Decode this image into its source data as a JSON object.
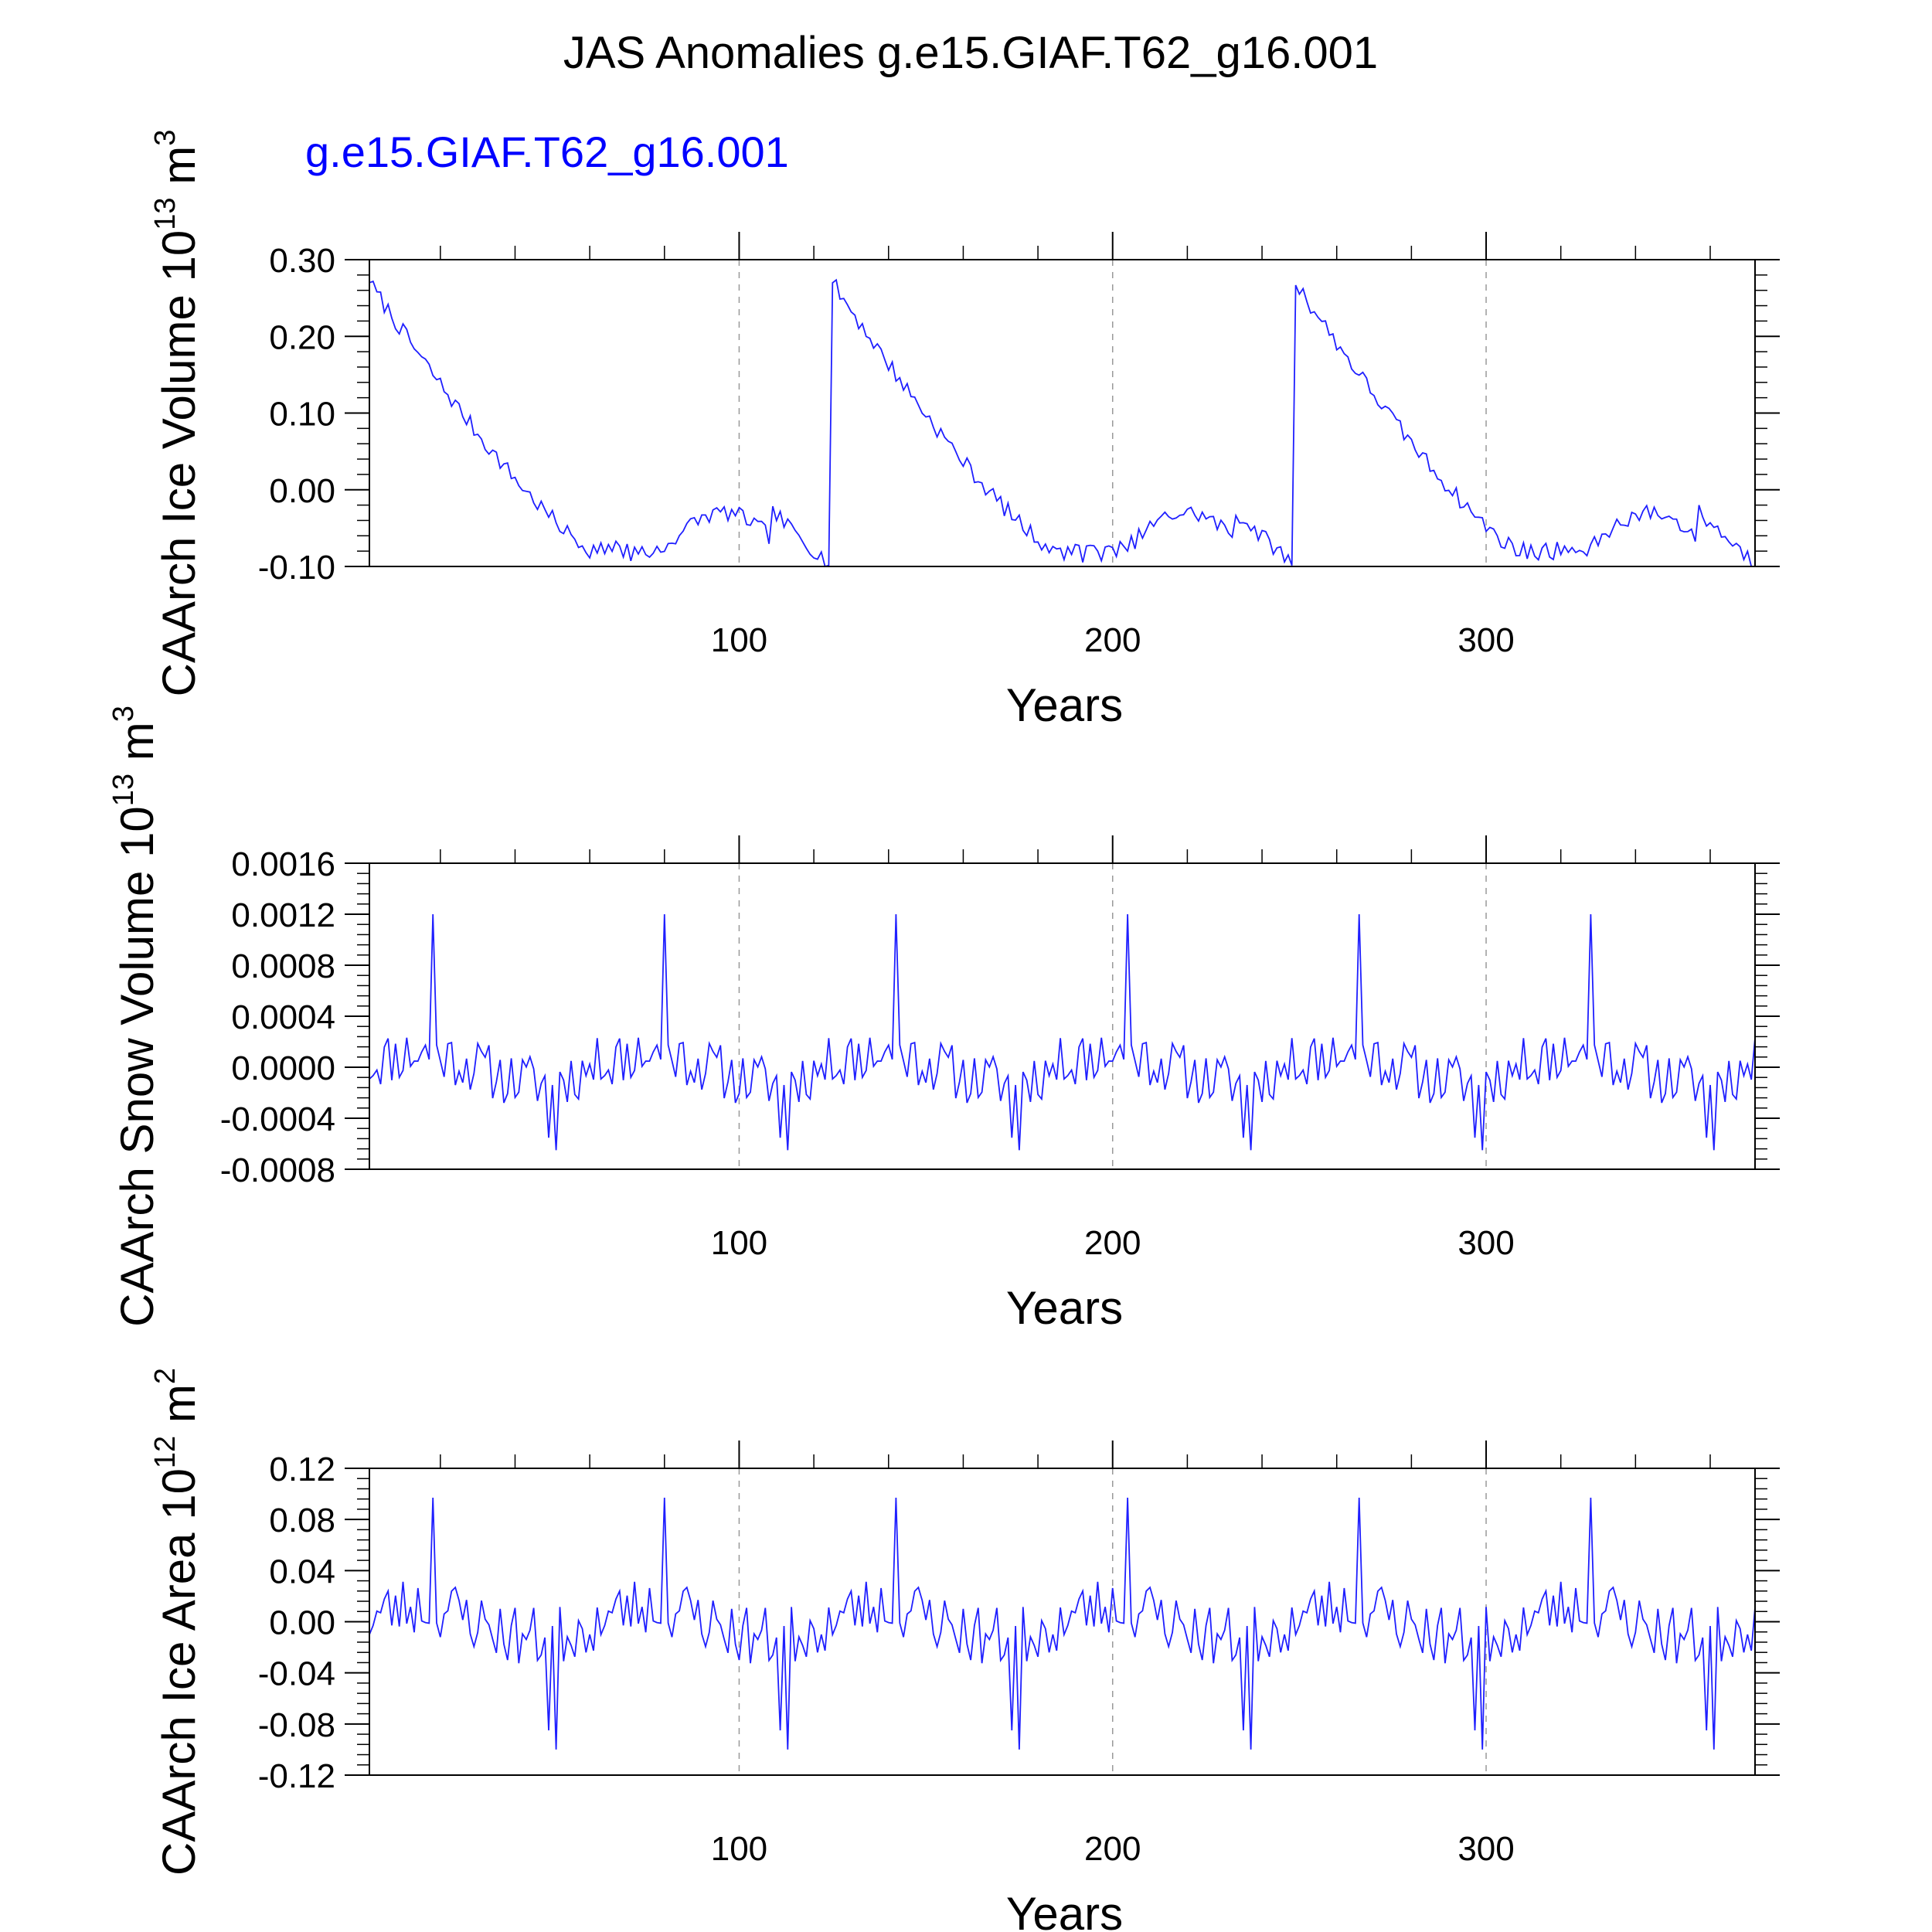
{
  "title": "JAS Anomalies g.e15.GIAF.T62_g16.001",
  "legend_label": "g.e15.GIAF.T62_g16.001",
  "colors": {
    "series": "#1f1fff",
    "legend": "#0000ff",
    "axis": "#000000",
    "grid": "#999999"
  },
  "chart_data": [
    {
      "type": "line",
      "name": "ice_volume",
      "ylabel": "CAArch Ice Volume",
      "ylabel_unit_base": "10",
      "ylabel_unit_exp": "13",
      "ylabel_unit_tail": "m",
      "ylabel_unit_tail_exp": "3",
      "xlabel": "Years",
      "xlim": [
        1,
        372
      ],
      "ylim": [
        -0.1,
        0.3
      ],
      "yticks": [
        -0.1,
        0.0,
        0.1,
        0.2,
        0.3
      ],
      "ytick_labels": [
        "-0.10",
        "0.00",
        "0.10",
        "0.20",
        "0.30"
      ],
      "xticks": [
        100,
        200,
        300
      ],
      "xtick_labels": [
        "100",
        "200",
        "300"
      ],
      "grid_x": [
        100,
        200,
        300
      ],
      "pattern": "sawtooth",
      "cycle_years": 124,
      "start_value": 0.27,
      "trough_value": -0.08,
      "secondary_hump_value": -0.03,
      "end_value": -0.1
    },
    {
      "type": "line",
      "name": "snow_volume",
      "ylabel": "CAArch Snow Volume",
      "ylabel_unit_base": "10",
      "ylabel_unit_exp": "13",
      "ylabel_unit_tail": "m",
      "ylabel_unit_tail_exp": "3",
      "xlabel": "Years",
      "xlim": [
        1,
        372
      ],
      "ylim": [
        -0.0008,
        0.0016
      ],
      "yticks": [
        -0.0008,
        -0.0004,
        0.0,
        0.0004,
        0.0008,
        0.0012,
        0.0016
      ],
      "ytick_labels": [
        "-0.0008",
        "-0.0004",
        "0.0000",
        "0.0004",
        "0.0008",
        "0.0012",
        "0.0016"
      ],
      "xticks": [
        100,
        200,
        300
      ],
      "xtick_labels": [
        "100",
        "200",
        "300"
      ],
      "grid_x": [
        100,
        200,
        300
      ],
      "pattern": "periodic_noise",
      "cycle_years": 62,
      "peak_value": 0.0012,
      "min_value": -0.00065
    },
    {
      "type": "line",
      "name": "ice_area",
      "ylabel": "CAArch Ice Area",
      "ylabel_unit_base": "10",
      "ylabel_unit_exp": "12",
      "ylabel_unit_tail": "m",
      "ylabel_unit_tail_exp": "2",
      "xlabel": "Years",
      "xlim": [
        1,
        372
      ],
      "ylim": [
        -0.12,
        0.12
      ],
      "yticks": [
        -0.12,
        -0.08,
        -0.04,
        0.0,
        0.04,
        0.08,
        0.12
      ],
      "ytick_labels": [
        "-0.12",
        "-0.08",
        "-0.04",
        "0.00",
        "0.04",
        "0.08",
        "0.12"
      ],
      "xticks": [
        100,
        200,
        300
      ],
      "xtick_labels": [
        "100",
        "200",
        "300"
      ],
      "grid_x": [
        100,
        200,
        300
      ],
      "pattern": "periodic_noise",
      "cycle_years": 62,
      "peak_value": 0.097,
      "min_value": -0.1
    }
  ]
}
